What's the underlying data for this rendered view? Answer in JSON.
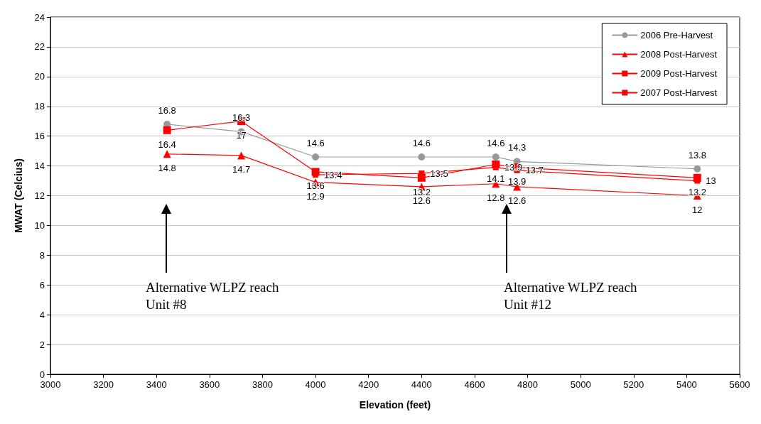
{
  "chart_data": {
    "type": "line",
    "xlabel": "Elevation (feet)",
    "ylabel": "MWAT (Celcius)",
    "x": [
      3440,
      3720,
      4000,
      4400,
      4680,
      4760,
      5440
    ],
    "series": [
      {
        "name": "2006 Pre-Harvest",
        "color": "#999999",
        "marker": "circle",
        "values": [
          16.8,
          16.3,
          14.6,
          14.6,
          14.6,
          14.3,
          13.8
        ]
      },
      {
        "name": "2008 Post-Harvest",
        "color": "#ff0000",
        "marker": "triangle",
        "values": [
          14.8,
          14.7,
          12.9,
          12.6,
          12.8,
          12.6,
          12
        ]
      },
      {
        "name": "2009 Post-Harvest",
        "color": "#ff0000",
        "marker": "square",
        "values": [
          16.4,
          17,
          13.6,
          13.2,
          14.1,
          13.9,
          13.2
        ]
      },
      {
        "name": "2007 Post-Harvest",
        "color": "#ff0000",
        "marker": "square",
        "values": [
          null,
          null,
          13.4,
          13.5,
          13.9,
          13.7,
          13
        ]
      }
    ],
    "xlim": [
      3000,
      5600
    ],
    "xticks": [
      3000,
      3200,
      3400,
      3600,
      3800,
      4000,
      4200,
      4400,
      4600,
      4800,
      5000,
      5200,
      5400,
      5600
    ],
    "ylim": [
      0,
      24
    ],
    "yticks": [
      0,
      2,
      4,
      6,
      8,
      10,
      12,
      14,
      16,
      18,
      20,
      22,
      24
    ],
    "grid": "y",
    "legend": "top right",
    "data_labels": true,
    "annotations": [
      "Alternative WLPZ reach\nUnit #8",
      "Alternative WLPZ reach\nUnit #12"
    ]
  }
}
